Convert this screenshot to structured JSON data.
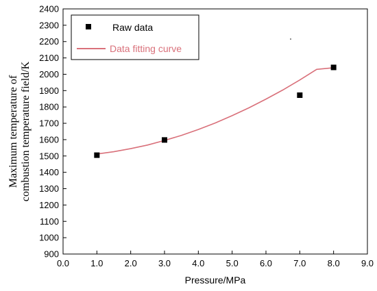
{
  "chart_data": {
    "type": "scatter",
    "xlabel": "Pressure/MPa",
    "ylabel_lines": [
      "Maximum temperature of",
      "combustion temperature field/K"
    ],
    "xlim": [
      0,
      9
    ],
    "ylim": [
      900,
      2400
    ],
    "x_ticks": [
      "0.0",
      "1.0",
      "2.0",
      "3.0",
      "4.0",
      "5.0",
      "6.0",
      "7.0",
      "8.0",
      "9.0"
    ],
    "y_ticks": [
      "900",
      "1000",
      "1100",
      "1200",
      "1300",
      "1400",
      "1500",
      "1600",
      "1700",
      "1800",
      "1900",
      "2000",
      "2100",
      "2200",
      "2300",
      "2400"
    ],
    "grid": false,
    "legend_position": "top-left",
    "series": [
      {
        "name": "Raw data",
        "kind": "scatter",
        "color": "#000000",
        "marker": "square",
        "x": [
          1.0,
          3.0,
          7.0,
          8.0
        ],
        "y": [
          1505,
          1598,
          1872,
          2042
        ]
      },
      {
        "name": "Data fitting curve",
        "kind": "line",
        "color": "#d9707a",
        "x": [
          1.0,
          1.5,
          2.0,
          2.5,
          3.0,
          3.5,
          4.0,
          4.5,
          5.0,
          5.5,
          6.0,
          6.5,
          7.0,
          7.5,
          8.0
        ],
        "y": [
          1512,
          1526,
          1545,
          1567,
          1595,
          1626,
          1662,
          1702,
          1747,
          1795,
          1848,
          1904,
          1965,
          2030,
          2040
        ]
      }
    ]
  }
}
